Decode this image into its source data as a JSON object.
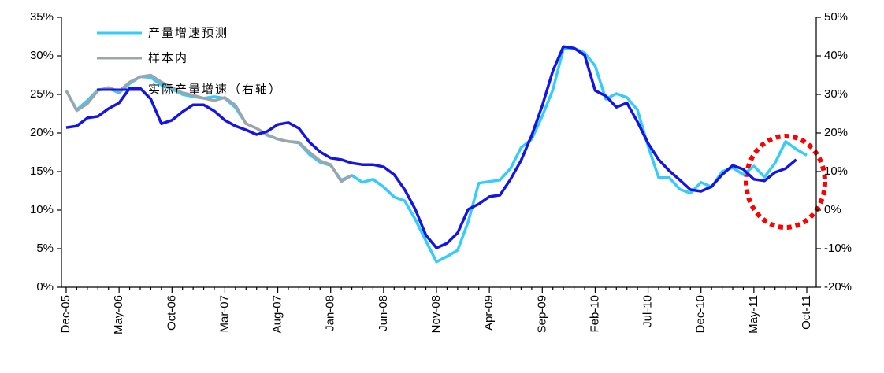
{
  "chart_data": {
    "type": "line",
    "categories": [
      "Dec-05",
      null,
      null,
      null,
      null,
      "May-06",
      null,
      null,
      null,
      null,
      "Oct-06",
      null,
      null,
      null,
      null,
      "Mar-07",
      null,
      null,
      null,
      null,
      "Aug-07",
      null,
      null,
      null,
      null,
      "Jan-08",
      null,
      null,
      null,
      null,
      "Jun-08",
      null,
      null,
      null,
      null,
      "Nov-08",
      null,
      null,
      null,
      null,
      "Apr-09",
      null,
      null,
      null,
      null,
      "Sep-09",
      null,
      null,
      null,
      null,
      "Feb-10",
      null,
      null,
      null,
      null,
      "Jul-10",
      null,
      null,
      null,
      null,
      "Dec-10",
      null,
      null,
      null,
      null,
      "May-11",
      null,
      null,
      null,
      null,
      "Oct-11"
    ],
    "series": [
      {
        "name": "产量增速预测",
        "color": "#33ccff",
        "axis": "y",
        "values": [
          25.5,
          23.0,
          24.2,
          25.6,
          25.8,
          25.2,
          26.4,
          27.3,
          27.2,
          26.2,
          25.7,
          25.0,
          24.7,
          24.5,
          24.7,
          24.5,
          23.3,
          21.2,
          20.6,
          19.7,
          19.2,
          18.9,
          18.7,
          17.2,
          16.2,
          15.8,
          13.9,
          14.5,
          13.6,
          14.0,
          13.0,
          11.7,
          11.2,
          8.8,
          6.0,
          3.3,
          4.0,
          4.8,
          8.5,
          13.5,
          13.7,
          13.9,
          15.4,
          18.1,
          19.2,
          22.2,
          25.6,
          30.9,
          31.0,
          30.4,
          28.7,
          24.4,
          25.1,
          24.6,
          23.0,
          18.3,
          14.2,
          14.2,
          12.7,
          12.2,
          13.6,
          13.0,
          15.0,
          15.5,
          14.6,
          15.7,
          14.3,
          16.1,
          18.9,
          17.9,
          17.1
        ]
      },
      {
        "name": "样本内",
        "color": "#a0a4a8",
        "axis": "y",
        "values": [
          25.5,
          22.9,
          23.8,
          25.5,
          25.9,
          25.4,
          26.6,
          27.3,
          27.5,
          26.6,
          25.9,
          25.2,
          24.9,
          24.5,
          24.2,
          24.6,
          23.6,
          21.2,
          20.6,
          19.8,
          19.2,
          18.9,
          18.8,
          17.5,
          16.4,
          15.9,
          13.7,
          14.5,
          null,
          null,
          null,
          null,
          null,
          null,
          null,
          null,
          null,
          null,
          null,
          null,
          null,
          null,
          null,
          null,
          null,
          null,
          null,
          null,
          null,
          null,
          null,
          null,
          null,
          null,
          null,
          null,
          null,
          null,
          null,
          null,
          null,
          null,
          null,
          null,
          null,
          null,
          null,
          null,
          null,
          null,
          null
        ]
      },
      {
        "name": "实际产量增速（右轴）",
        "color": "#1414e6",
        "axis": "y2",
        "values": [
          21.4,
          21.8,
          23.9,
          24.3,
          26.3,
          27.8,
          31.6,
          31.6,
          28.8,
          22.4,
          23.3,
          25.5,
          27.3,
          27.3,
          25.7,
          23.3,
          21.8,
          20.8,
          19.6,
          20.4,
          22.2,
          22.7,
          21.2,
          17.6,
          15.1,
          13.5,
          13.1,
          12.2,
          11.8,
          11.8,
          11.2,
          9.2,
          5.3,
          0.2,
          -6.5,
          -9.8,
          -8.6,
          -5.9,
          0.2,
          1.6,
          3.5,
          3.9,
          8.0,
          12.9,
          19.4,
          27.1,
          36.1,
          42.4,
          42.0,
          40.2,
          31.0,
          29.6,
          26.7,
          27.8,
          22.9,
          17.3,
          13.1,
          10.2,
          7.8,
          5.3,
          4.9,
          6.1,
          9.2,
          11.6,
          10.6,
          8.0,
          7.6,
          9.8,
          10.8,
          13.1,
          null
        ]
      }
    ],
    "ylim": [
      0,
      35
    ],
    "yticks": [
      {
        "value": 0,
        "label": "0%"
      },
      {
        "value": 5,
        "label": "5%"
      },
      {
        "value": 10,
        "label": "10%"
      },
      {
        "value": 15,
        "label": "15%"
      },
      {
        "value": 20,
        "label": "20%"
      },
      {
        "value": 25,
        "label": "25%"
      },
      {
        "value": 30,
        "label": "30%"
      },
      {
        "value": 35,
        "label": "35%"
      }
    ],
    "y2lim": [
      -20,
      50
    ],
    "y2ticks": [
      {
        "value": -20,
        "label": "-20%"
      },
      {
        "value": -10,
        "label": "-10%"
      },
      {
        "value": 0,
        "label": "0%"
      },
      {
        "value": 10,
        "label": "10%"
      },
      {
        "value": 20,
        "label": "20%"
      },
      {
        "value": 30,
        "label": "30%"
      },
      {
        "value": 40,
        "label": "40%"
      },
      {
        "value": 50,
        "label": "50%"
      }
    ],
    "legend": "upper-left",
    "grid": false
  }
}
